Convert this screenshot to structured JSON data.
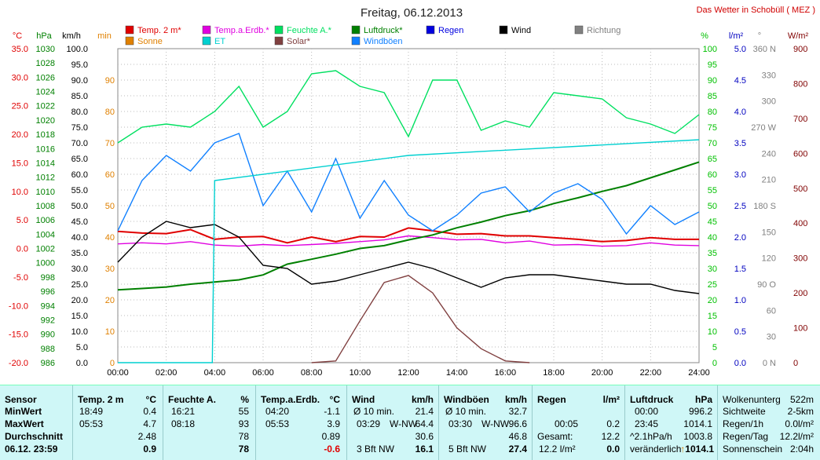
{
  "chart_data": {
    "type": "line",
    "title": "Freitag, 06.12.2013",
    "site": "Das Wetter in Schobüll ( MEZ )",
    "x_ticks": [
      "00:00",
      "02:00",
      "04:00",
      "06:00",
      "08:00",
      "10:00",
      "12:00",
      "14:00",
      "16:00",
      "18:00",
      "20:00",
      "22:00",
      "24:00"
    ],
    "grid": true,
    "axes": {
      "temp": {
        "unit": "°C",
        "color": "#e00000",
        "min": -20,
        "max": 35,
        "ticks": [
          "35.0",
          "30.0",
          "25.0",
          "20.0",
          "15.0",
          "10.0",
          "5.0",
          "0.0",
          "-5.0",
          "-10.0",
          "-15.0",
          "-20.0"
        ]
      },
      "pressure": {
        "unit": "hPa",
        "color": "#008000",
        "min": 986,
        "max": 1030,
        "ticks": [
          "1030",
          "1028",
          "1026",
          "1024",
          "1022",
          "1020",
          "1018",
          "1016",
          "1014",
          "1012",
          "1010",
          "1008",
          "1006",
          "1004",
          "1002",
          "1000",
          "998",
          "996",
          "994",
          "992",
          "990",
          "988",
          "986"
        ]
      },
      "speed": {
        "unit": "km/h",
        "color": "#000000",
        "min": 0,
        "max": 100,
        "ticks": [
          "100.0",
          "95.0",
          "90.0",
          "85.0",
          "80.0",
          "75.0",
          "70.0",
          "65.0",
          "60.0",
          "55.0",
          "50.0",
          "45.0",
          "40.0",
          "35.0",
          "30.0",
          "25.0",
          "20.0",
          "15.0",
          "10.0",
          "5.0",
          "0.0"
        ]
      },
      "minutes": {
        "unit": "min",
        "color": "#e08000",
        "ticks": [
          "90",
          "80",
          "70",
          "60",
          "50",
          "40",
          "30",
          "20",
          "10",
          "0"
        ]
      },
      "humidity": {
        "unit": "%",
        "color": "#00c000",
        "ticks": [
          "100",
          "95",
          "90",
          "85",
          "80",
          "75",
          "70",
          "65",
          "60",
          "55",
          "50",
          "45",
          "40",
          "35",
          "30",
          "25",
          "20",
          "15",
          "10",
          "5",
          "0"
        ]
      },
      "rain": {
        "unit": "l/m²",
        "color": "#0000c0",
        "ticks": [
          "5.0",
          "4.5",
          "4.0",
          "3.5",
          "3.0",
          "2.5",
          "2.0",
          "1.5",
          "1.0",
          "0.5",
          "0.0"
        ]
      },
      "direction": {
        "unit": "°",
        "color": "#808080",
        "ticks": [
          "360 N",
          "330",
          "300",
          "270 W",
          "240",
          "210",
          "180 S",
          "150",
          "120",
          "90 O",
          "60",
          "30",
          "0 N"
        ]
      },
      "solar": {
        "unit": "W/m²",
        "color": "#800000",
        "ticks": [
          "900",
          "800",
          "700",
          "600",
          "500",
          "400",
          "300",
          "200",
          "100",
          "0"
        ]
      }
    },
    "legend": [
      {
        "name": "Temp. 2 m*",
        "color": "#e00000"
      },
      {
        "name": "Temp.a.Erdb.*",
        "color": "#e000e0"
      },
      {
        "name": "Feuchte A.*",
        "color": "#00e060"
      },
      {
        "name": "Luftdruck*",
        "color": "#008000"
      },
      {
        "name": "Regen",
        "color": "#0000e0"
      },
      {
        "name": "Wind",
        "color": "#000000"
      },
      {
        "name": "Richtung",
        "color": "#808080"
      },
      {
        "name": "Sonne",
        "color": "#e08000"
      },
      {
        "name": "ET",
        "color": "#00d0d0"
      },
      {
        "name": "Solar*",
        "color": "#804040"
      },
      {
        "name": "Windböen",
        "color": "#1080ff"
      }
    ],
    "series": [
      {
        "name": "Temp. 2 m*",
        "axis": "temp",
        "x": [
          0,
          1,
          2,
          3,
          4,
          5,
          6,
          7,
          8,
          9,
          10,
          11,
          12,
          13,
          14,
          15,
          16,
          17,
          18,
          19,
          20,
          21,
          22,
          23,
          24
        ],
        "y": [
          3.0,
          2.7,
          2.6,
          3.3,
          1.6,
          2.0,
          2.1,
          1.0,
          2.0,
          1.2,
          2.1,
          2.0,
          3.6,
          3.1,
          2.5,
          2.6,
          2.2,
          2.2,
          1.9,
          1.6,
          1.2,
          1.4,
          1.9,
          1.6,
          1.6
        ]
      },
      {
        "name": "Temp.a.Erdb.*",
        "axis": "temp",
        "x": [
          0,
          1,
          2,
          3,
          4,
          5,
          6,
          7,
          8,
          9,
          10,
          11,
          12,
          13,
          14,
          15,
          16,
          17,
          18,
          19,
          20,
          21,
          22,
          23,
          24
        ],
        "y": [
          0.8,
          1.0,
          0.8,
          1.2,
          0.6,
          0.4,
          0.7,
          0.5,
          0.7,
          0.9,
          1.2,
          1.5,
          2.2,
          1.9,
          1.5,
          1.6,
          1.0,
          1.3,
          0.6,
          0.7,
          0.4,
          0.5,
          1.0,
          0.6,
          0.5
        ]
      },
      {
        "name": "Feuchte A.*",
        "axis": "humidity",
        "x": [
          0,
          1,
          2,
          3,
          4,
          5,
          6,
          7,
          8,
          9,
          10,
          11,
          12,
          13,
          14,
          15,
          16,
          17,
          18,
          19,
          20,
          21,
          22,
          23,
          24
        ],
        "y": [
          70,
          75,
          76,
          75,
          80,
          88,
          75,
          80,
          92,
          93,
          88,
          86,
          72,
          90,
          90,
          74,
          77,
          75,
          86,
          85,
          84,
          78,
          76,
          73,
          79
        ]
      },
      {
        "name": "Luftdruck*",
        "axis": "pressure",
        "x": [
          0,
          1,
          2,
          3,
          4,
          5,
          6,
          7,
          8,
          9,
          10,
          11,
          12,
          13,
          14,
          15,
          16,
          17,
          18,
          19,
          20,
          21,
          22,
          23,
          24
        ],
        "y": [
          996.2,
          996.4,
          996.6,
          997.0,
          997.3,
          997.6,
          998.3,
          999.8,
          1000.5,
          1001.2,
          1002.0,
          1002.4,
          1003.2,
          1003.9,
          1004.9,
          1005.7,
          1006.6,
          1007.3,
          1008.3,
          1009.1,
          1010.0,
          1010.8,
          1011.9,
          1013.0,
          1014.1
        ]
      },
      {
        "name": "Windböen",
        "axis": "speed",
        "x": [
          0,
          1,
          2,
          3,
          4,
          5,
          6,
          7,
          8,
          9,
          10,
          11,
          12,
          13,
          14,
          15,
          16,
          17,
          18,
          19,
          20,
          21,
          22,
          23,
          24
        ],
        "y": [
          42,
          58,
          66,
          61,
          70,
          73,
          50,
          61,
          48,
          65,
          46,
          58,
          47,
          42,
          47,
          54,
          56,
          48,
          54,
          57,
          52,
          41,
          50,
          44,
          48
        ]
      },
      {
        "name": "Wind",
        "axis": "speed",
        "x": [
          0,
          1,
          2,
          3,
          4,
          5,
          6,
          7,
          8,
          9,
          10,
          11,
          12,
          13,
          14,
          15,
          16,
          17,
          18,
          19,
          20,
          21,
          22,
          23,
          24
        ],
        "y": [
          32,
          40,
          45,
          43,
          44,
          40,
          31,
          30,
          25,
          26,
          28,
          30,
          32,
          30,
          27,
          24,
          27,
          28,
          28,
          27,
          26,
          25,
          25,
          23,
          22
        ]
      },
      {
        "name": "Solar*",
        "axis": "solar",
        "x": [
          8,
          9,
          10,
          11,
          12,
          13,
          14,
          15,
          16,
          17
        ],
        "y": [
          0,
          5,
          120,
          230,
          250,
          200,
          100,
          40,
          5,
          0
        ]
      },
      {
        "name": "ET",
        "axis": "rain",
        "x": [
          0,
          3.9,
          4,
          12,
          24
        ],
        "y": [
          0,
          0,
          2.9,
          3.3,
          3.55
        ]
      }
    ]
  },
  "stats": {
    "row_labels": [
      "Sensor",
      "MinWert",
      "MaxWert",
      "Durchschnitt",
      "06.12. 23:59"
    ],
    "temp": {
      "head": "Temp. 2 m",
      "unit": "°C",
      "min_time": "18:49",
      "min": "0.4",
      "max_time": "05:53",
      "max": "4.7",
      "avg": "2.48",
      "now": "0.9"
    },
    "humidity": {
      "head": "Feuchte A.",
      "unit": "%",
      "min_time": "16:21",
      "min": "55",
      "max_time": "08:18",
      "max": "93",
      "avg": "78",
      "now": "78"
    },
    "ground": {
      "head": "Temp.a.Erdb.",
      "unit": "°C",
      "min_time": "04:20",
      "min": "-1.1",
      "max_time": "05:53",
      "max": "3.9",
      "avg": "0.89",
      "now": "-0.6"
    },
    "wind": {
      "head": "Wind",
      "unit": "km/h",
      "r1l": "Ø 10 min.",
      "r1v": "21.4",
      "r2l": "03:29",
      "r2m": "W-NW",
      "r2v": "64.4",
      "avg": "30.6",
      "nowl": "3 Bft NW",
      "now": "16.1"
    },
    "gust": {
      "head": "Windböen",
      "unit": "km/h",
      "r1l": "Ø 10 min.",
      "r1v": "32.7",
      "r2l": "03:30",
      "r2m": "W-NW",
      "r2v": "96.6",
      "avg": "46.8",
      "nowl": "5 Bft NW",
      "now": "27.4"
    },
    "rain": {
      "head": "Regen",
      "unit": "l/m²",
      "r2l": "00:05",
      "r2v": "0.2",
      "avgl": "Gesamt:",
      "avg": "12.2",
      "nowl": "12.2 l/m²",
      "now": "0.0"
    },
    "pressure": {
      "head": "Luftdruck",
      "unit": "hPa",
      "r1l": "00:00",
      "r1v": "996.2",
      "r2l": "23:45",
      "r2v": "1014.1",
      "avgl": "^2.1hPa/h",
      "avg": "1003.8",
      "nowl": "veränderlich",
      "now": "1014.1"
    },
    "misc": [
      {
        "l": "Wolkenunterg",
        "v": "522m"
      },
      {
        "l": "Sichtweite",
        "v": "2-5km"
      },
      {
        "l": "Regen/1h",
        "v": "0.0l/m²"
      },
      {
        "l": "Regen/Tag",
        "v": "12.2l/m²"
      },
      {
        "l": "Sonnenschein",
        "v": "2:04h"
      }
    ]
  }
}
